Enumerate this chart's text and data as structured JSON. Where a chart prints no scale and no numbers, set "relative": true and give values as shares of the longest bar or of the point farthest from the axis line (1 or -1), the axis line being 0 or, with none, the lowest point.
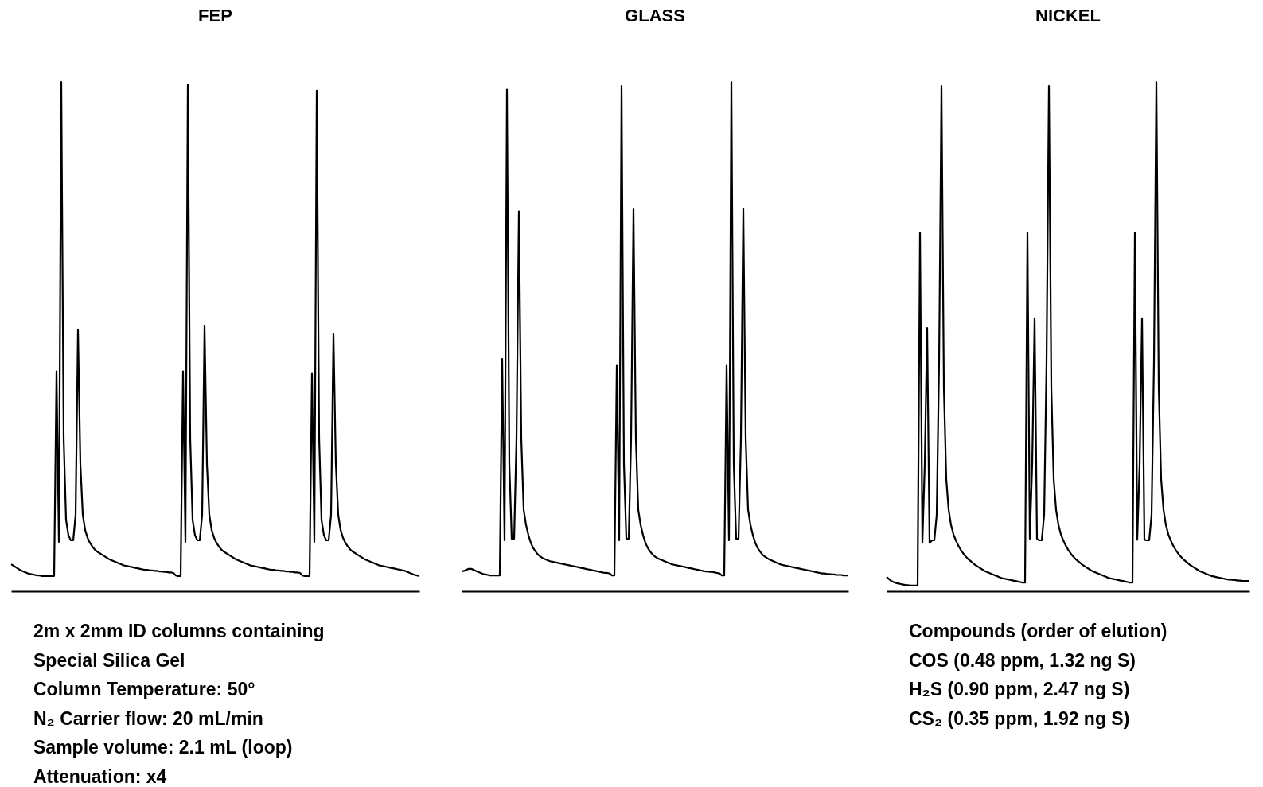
{
  "chart_data": [
    {
      "type": "line",
      "title": "FEP",
      "relative": true,
      "line_style": "solid",
      "annotations": [
        "2m x 2mm ID columns containing",
        "Special Silica Gel",
        "Column Temperature: 50°",
        "N₂ Carrier flow: 20 mL/min",
        "Sample volume: 2.1 mL (loop)",
        "Attenuation: x4"
      ],
      "categories": [
        null,
        null,
        null,
        null,
        null,
        null,
        null,
        null,
        null,
        null,
        null,
        null,
        null,
        null,
        null,
        null,
        null,
        null,
        null,
        null,
        null,
        null,
        null,
        null,
        null,
        null,
        null,
        null,
        null,
        null,
        null,
        null,
        null,
        null,
        null,
        null,
        null,
        null,
        null,
        null,
        null,
        null,
        null,
        null,
        null,
        null,
        null,
        null,
        null,
        null,
        null,
        null,
        null,
        null,
        null,
        null,
        null,
        null,
        null,
        null,
        null,
        null,
        null,
        null,
        null,
        null,
        null,
        null,
        null,
        null,
        null,
        null,
        null,
        null,
        null,
        null,
        null,
        null,
        null,
        null,
        null,
        null,
        null,
        null,
        null,
        null,
        null,
        null,
        null,
        null,
        null,
        null,
        null,
        null,
        null,
        null,
        null,
        null,
        null,
        null,
        null,
        null,
        null,
        null,
        null,
        null,
        null,
        null,
        null,
        null,
        null,
        null,
        null,
        null,
        null,
        null,
        null,
        null,
        null,
        null,
        null,
        null,
        null,
        null,
        null,
        null,
        null,
        null,
        null,
        null,
        null,
        null,
        null,
        null,
        null,
        null,
        null,
        null,
        null,
        null,
        null,
        null,
        null,
        null,
        null,
        null,
        null,
        null,
        null,
        null,
        null,
        null,
        null,
        null,
        null,
        null,
        null,
        null,
        null,
        null,
        null,
        null,
        null,
        null,
        null,
        null,
        null,
        null,
        null,
        null,
        null,
        null
      ],
      "series": [
        {
          "color": "#000000",
          "values": [
            0.053,
            0.05,
            0.047,
            0.044,
            0.041,
            0.039,
            0.037,
            0.035,
            0.034,
            0.033,
            0.032,
            0.031,
            0.031,
            0.03,
            0.03,
            0.03,
            0.03,
            0.03,
            0.03,
            0.432,
            0.097,
            1.0,
            0.3,
            0.14,
            0.11,
            0.1,
            0.1,
            0.15,
            0.513,
            0.25,
            0.15,
            0.12,
            0.105,
            0.095,
            0.088,
            0.082,
            0.078,
            0.075,
            0.072,
            0.069,
            0.066,
            0.063,
            0.061,
            0.059,
            0.057,
            0.055,
            0.053,
            0.051,
            0.05,
            0.049,
            0.048,
            0.047,
            0.046,
            0.045,
            0.044,
            0.043,
            0.042,
            0.042,
            0.041,
            0.041,
            0.04,
            0.04,
            0.039,
            0.039,
            0.038,
            0.038,
            0.037,
            0.037,
            0.036,
            0.031,
            0.03,
            0.03,
            0.432,
            0.097,
            0.995,
            0.3,
            0.14,
            0.11,
            0.1,
            0.1,
            0.15,
            0.521,
            0.25,
            0.15,
            0.12,
            0.105,
            0.095,
            0.088,
            0.082,
            0.078,
            0.075,
            0.072,
            0.069,
            0.066,
            0.063,
            0.061,
            0.059,
            0.057,
            0.055,
            0.053,
            0.051,
            0.05,
            0.049,
            0.048,
            0.047,
            0.046,
            0.045,
            0.044,
            0.043,
            0.042,
            0.042,
            0.041,
            0.041,
            0.04,
            0.04,
            0.039,
            0.039,
            0.038,
            0.038,
            0.037,
            0.037,
            0.036,
            0.031,
            0.03,
            0.03,
            0.03,
            0.427,
            0.097,
            0.983,
            0.3,
            0.14,
            0.11,
            0.1,
            0.1,
            0.15,
            0.505,
            0.25,
            0.15,
            0.12,
            0.105,
            0.095,
            0.088,
            0.082,
            0.078,
            0.075,
            0.072,
            0.069,
            0.066,
            0.063,
            0.061,
            0.059,
            0.057,
            0.055,
            0.053,
            0.051,
            0.05,
            0.049,
            0.048,
            0.047,
            0.046,
            0.045,
            0.044,
            0.043,
            0.042,
            0.041,
            0.04,
            0.038,
            0.036,
            0.034,
            0.032,
            0.031,
            0.03
          ]
        }
      ]
    },
    {
      "type": "line",
      "title": "GLASS",
      "relative": true,
      "line_style": "solid",
      "categories": [
        null,
        null,
        null,
        null,
        null,
        null,
        null,
        null,
        null,
        null,
        null,
        null,
        null,
        null,
        null,
        null,
        null,
        null,
        null,
        null,
        null,
        null,
        null,
        null,
        null,
        null,
        null,
        null,
        null,
        null,
        null,
        null,
        null,
        null,
        null,
        null,
        null,
        null,
        null,
        null,
        null,
        null,
        null,
        null,
        null,
        null,
        null,
        null,
        null,
        null,
        null,
        null,
        null,
        null,
        null,
        null,
        null,
        null,
        null,
        null,
        null,
        null,
        null,
        null,
        null,
        null,
        null,
        null,
        null,
        null,
        null,
        null,
        null,
        null,
        null,
        null,
        null,
        null,
        null,
        null,
        null,
        null,
        null,
        null,
        null,
        null,
        null,
        null,
        null,
        null,
        null,
        null,
        null,
        null,
        null,
        null,
        null,
        null,
        null,
        null,
        null,
        null,
        null,
        null,
        null,
        null,
        null,
        null,
        null,
        null,
        null,
        null,
        null,
        null,
        null,
        null,
        null,
        null,
        null,
        null,
        null,
        null,
        null,
        null,
        null,
        null,
        null,
        null,
        null,
        null,
        null,
        null,
        null,
        null,
        null,
        null,
        null,
        null,
        null,
        null,
        null,
        null,
        null,
        null,
        null,
        null,
        null,
        null,
        null,
        null,
        null,
        null,
        null,
        null,
        null,
        null,
        null,
        null,
        null,
        null,
        null,
        null,
        null
      ],
      "series": [
        {
          "color": "#000000",
          "values": [
            0.039,
            0.04,
            0.042,
            0.044,
            0.044,
            0.042,
            0.04,
            0.038,
            0.036,
            0.034,
            0.033,
            0.032,
            0.031,
            0.031,
            0.031,
            0.031,
            0.031,
            0.456,
            0.1,
            0.985,
            0.25,
            0.103,
            0.103,
            0.3,
            0.746,
            0.3,
            0.16,
            0.13,
            0.11,
            0.095,
            0.085,
            0.078,
            0.072,
            0.068,
            0.065,
            0.063,
            0.061,
            0.059,
            0.058,
            0.057,
            0.056,
            0.055,
            0.054,
            0.053,
            0.052,
            0.051,
            0.05,
            0.049,
            0.048,
            0.047,
            0.046,
            0.045,
            0.044,
            0.043,
            0.042,
            0.041,
            0.04,
            0.039,
            0.038,
            0.037,
            0.036,
            0.036,
            0.035,
            0.031,
            0.031,
            0.443,
            0.1,
            0.992,
            0.25,
            0.103,
            0.103,
            0.3,
            0.75,
            0.3,
            0.16,
            0.13,
            0.11,
            0.095,
            0.085,
            0.078,
            0.072,
            0.068,
            0.065,
            0.063,
            0.061,
            0.059,
            0.057,
            0.055,
            0.053,
            0.052,
            0.051,
            0.05,
            0.049,
            0.048,
            0.047,
            0.046,
            0.045,
            0.044,
            0.043,
            0.042,
            0.041,
            0.04,
            0.039,
            0.039,
            0.038,
            0.038,
            0.037,
            0.036,
            0.035,
            0.031,
            0.031,
            0.443,
            0.1,
            1.0,
            0.25,
            0.103,
            0.103,
            0.3,
            0.751,
            0.3,
            0.16,
            0.13,
            0.11,
            0.095,
            0.085,
            0.078,
            0.072,
            0.068,
            0.065,
            0.062,
            0.06,
            0.058,
            0.056,
            0.054,
            0.052,
            0.051,
            0.05,
            0.049,
            0.048,
            0.047,
            0.046,
            0.045,
            0.044,
            0.043,
            0.042,
            0.041,
            0.04,
            0.039,
            0.038,
            0.037,
            0.036,
            0.035,
            0.035,
            0.034,
            0.034,
            0.033,
            0.033,
            0.032,
            0.032,
            0.032,
            0.031,
            0.031,
            0.031
          ]
        }
      ]
    },
    {
      "type": "line",
      "title": "NICKEL",
      "relative": true,
      "line_style": "solid",
      "annotations": [
        "Compounds (order of elution)",
        "COS (0.48 ppm, 1.32 ng S)",
        "H₂S (0.90 ppm, 2.47 ng S)",
        "CS₂ (0.35 ppm, 1.92 ng S)"
      ],
      "categories": [
        null,
        null,
        null,
        null,
        null,
        null,
        null,
        null,
        null,
        null,
        null,
        null,
        null,
        null,
        null,
        null,
        null,
        null,
        null,
        null,
        null,
        null,
        null,
        null,
        null,
        null,
        null,
        null,
        null,
        null,
        null,
        null,
        null,
        null,
        null,
        null,
        null,
        null,
        null,
        null,
        null,
        null,
        null,
        null,
        null,
        null,
        null,
        null,
        null,
        null,
        null,
        null,
        null,
        null,
        null,
        null,
        null,
        null,
        null,
        null,
        null,
        null,
        null,
        null,
        null,
        null,
        null,
        null,
        null,
        null,
        null,
        null,
        null,
        null,
        null,
        null,
        null,
        null,
        null,
        null,
        null,
        null,
        null,
        null,
        null,
        null,
        null,
        null,
        null,
        null,
        null,
        null,
        null,
        null,
        null,
        null,
        null,
        null,
        null,
        null,
        null,
        null,
        null,
        null,
        null,
        null,
        null,
        null,
        null,
        null,
        null,
        null,
        null,
        null,
        null,
        null,
        null,
        null,
        null,
        null,
        null,
        null,
        null,
        null,
        null,
        null,
        null,
        null,
        null,
        null,
        null,
        null,
        null,
        null,
        null,
        null,
        null,
        null,
        null,
        null,
        null,
        null,
        null,
        null,
        null,
        null,
        null,
        null,
        null,
        null,
        null,
        null,
        null
      ],
      "series": [
        {
          "color": "#000000",
          "values": [
            0.028,
            0.024,
            0.02,
            0.018,
            0.016,
            0.015,
            0.014,
            0.013,
            0.012,
            0.012,
            0.011,
            0.011,
            0.011,
            0.011,
            0.704,
            0.095,
            0.25,
            0.517,
            0.095,
            0.1,
            0.1,
            0.15,
            0.45,
            0.992,
            0.4,
            0.22,
            0.16,
            0.13,
            0.112,
            0.1,
            0.09,
            0.082,
            0.075,
            0.069,
            0.064,
            0.06,
            0.056,
            0.052,
            0.049,
            0.046,
            0.043,
            0.04,
            0.038,
            0.036,
            0.034,
            0.032,
            0.03,
            0.028,
            0.026,
            0.025,
            0.024,
            0.023,
            0.022,
            0.021,
            0.02,
            0.019,
            0.018,
            0.017,
            0.017,
            0.704,
            0.103,
            0.25,
            0.536,
            0.103,
            0.1,
            0.1,
            0.15,
            0.45,
            0.992,
            0.4,
            0.22,
            0.16,
            0.13,
            0.112,
            0.1,
            0.09,
            0.082,
            0.075,
            0.069,
            0.064,
            0.06,
            0.056,
            0.052,
            0.049,
            0.046,
            0.043,
            0.04,
            0.038,
            0.036,
            0.034,
            0.032,
            0.03,
            0.028,
            0.026,
            0.025,
            0.024,
            0.023,
            0.022,
            0.021,
            0.02,
            0.019,
            0.018,
            0.017,
            0.017,
            0.704,
            0.101,
            0.25,
            0.536,
            0.101,
            0.1,
            0.1,
            0.15,
            0.45,
            1.0,
            0.4,
            0.22,
            0.16,
            0.13,
            0.112,
            0.1,
            0.09,
            0.082,
            0.075,
            0.069,
            0.064,
            0.06,
            0.056,
            0.052,
            0.049,
            0.046,
            0.043,
            0.04,
            0.038,
            0.036,
            0.034,
            0.032,
            0.03,
            0.029,
            0.028,
            0.027,
            0.026,
            0.025,
            0.024,
            0.023,
            0.023,
            0.022,
            0.022,
            0.021,
            0.021,
            0.02,
            0.02,
            0.02,
            0.02
          ]
        }
      ]
    }
  ]
}
